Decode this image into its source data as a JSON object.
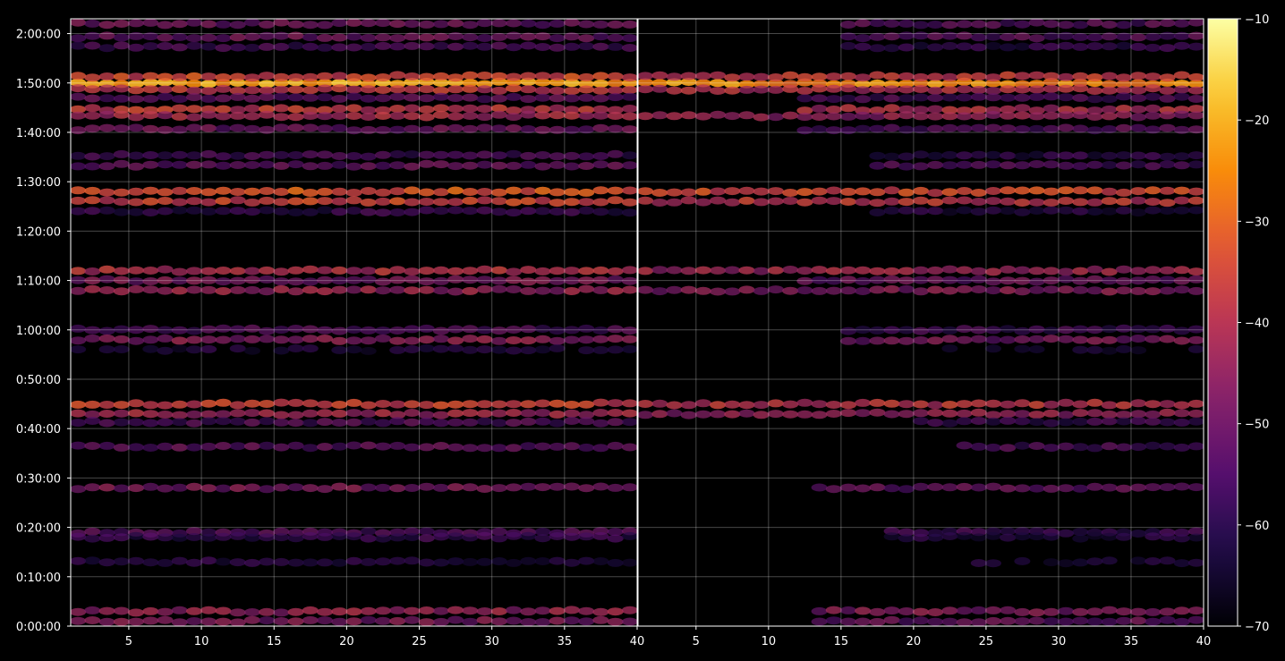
{
  "chart_data": {
    "type": "heatmap",
    "title": "",
    "xlabel": "",
    "ylabel": "",
    "grid": true,
    "background": "#000000",
    "colormap": "inferno",
    "panels": [
      {
        "name": "",
        "xlim": [
          1,
          40
        ],
        "x_ticks": [
          5,
          10,
          15,
          20,
          25,
          30,
          35,
          40
        ],
        "x_tick_labels": [
          "5",
          "10",
          "15",
          "20",
          "25",
          "30",
          "35",
          "40"
        ]
      },
      {
        "name": "",
        "xlim": [
          1,
          40
        ],
        "x_ticks": [
          5,
          10,
          15,
          20,
          25,
          30,
          35,
          40
        ],
        "x_tick_labels": [
          "5",
          "10",
          "15",
          "20",
          "25",
          "30",
          "35",
          "40"
        ]
      }
    ],
    "y_axis": {
      "unit": "seconds",
      "ylim": [
        0,
        7380
      ],
      "ticks": [
        0,
        600,
        1200,
        1800,
        2400,
        3000,
        3600,
        4200,
        4800,
        5400,
        6000,
        6600,
        7200
      ],
      "tick_labels": [
        "0:00:00",
        "0:10:00",
        "0:20:00",
        "0:30:00",
        "0:40:00",
        "0:50:00",
        "1:00:00",
        "1:10:00",
        "1:20:00",
        "1:30:00",
        "1:40:00",
        "1:50:00",
        "2:00:00"
      ]
    },
    "colorbar": {
      "range": [
        -70,
        -10
      ],
      "ticks": [
        -10,
        -20,
        -30,
        -40,
        -50,
        -60,
        -70
      ],
      "tick_labels": [
        "−10",
        "−20",
        "−30",
        "−40",
        "−50",
        "−60",
        "−70"
      ]
    },
    "bands": [
      {
        "t": 6600,
        "level": -22,
        "panel2_start": 1
      },
      {
        "t": 6680,
        "level": -35,
        "panel2_start": 1
      },
      {
        "t": 6520,
        "level": -38,
        "panel2_start": 1
      },
      {
        "t": 6420,
        "level": -52,
        "panel2_start": 12
      },
      {
        "t": 6280,
        "level": -38,
        "panel2_start": 12
      },
      {
        "t": 6200,
        "level": -42,
        "panel2_start": 1
      },
      {
        "t": 6040,
        "level": -50,
        "panel2_start": 12
      },
      {
        "t": 5600,
        "level": -52,
        "panel2_start": 17
      },
      {
        "t": 5720,
        "level": -56,
        "panel2_start": 17
      },
      {
        "t": 5280,
        "level": -32,
        "panel2_start": 1
      },
      {
        "t": 5160,
        "level": -36,
        "panel2_start": 1
      },
      {
        "t": 5040,
        "level": -58,
        "panel2_start": 17
      },
      {
        "t": 4320,
        "level": -40,
        "panel2_start": 1
      },
      {
        "t": 4200,
        "level": -48,
        "panel2_start": 12
      },
      {
        "t": 4080,
        "level": -44,
        "panel2_start": 1
      },
      {
        "t": 3600,
        "level": -54,
        "panel2_start": 15
      },
      {
        "t": 3480,
        "level": -46,
        "panel2_start": 15
      },
      {
        "t": 3360,
        "level": -62,
        "panel2_start": 22
      },
      {
        "t": 2700,
        "level": -36,
        "panel2_start": 1
      },
      {
        "t": 2580,
        "level": -42,
        "panel2_start": 1
      },
      {
        "t": 2480,
        "level": -54,
        "panel2_start": 20
      },
      {
        "t": 2180,
        "level": -52,
        "panel2_start": 23
      },
      {
        "t": 1680,
        "level": -48,
        "panel2_start": 13
      },
      {
        "t": 1140,
        "level": -54,
        "panel2_start": 18
      },
      {
        "t": 1080,
        "level": -58,
        "panel2_start": 18
      },
      {
        "t": 780,
        "level": -60,
        "panel2_start": 24
      },
      {
        "t": 180,
        "level": -44,
        "panel2_start": 13
      },
      {
        "t": 60,
        "level": -48,
        "panel2_start": 13
      },
      {
        "t": 7320,
        "level": -50,
        "panel2_start": 15
      },
      {
        "t": 7160,
        "level": -50,
        "panel2_start": 15
      },
      {
        "t": 7040,
        "level": -56,
        "panel2_start": 15
      }
    ]
  }
}
